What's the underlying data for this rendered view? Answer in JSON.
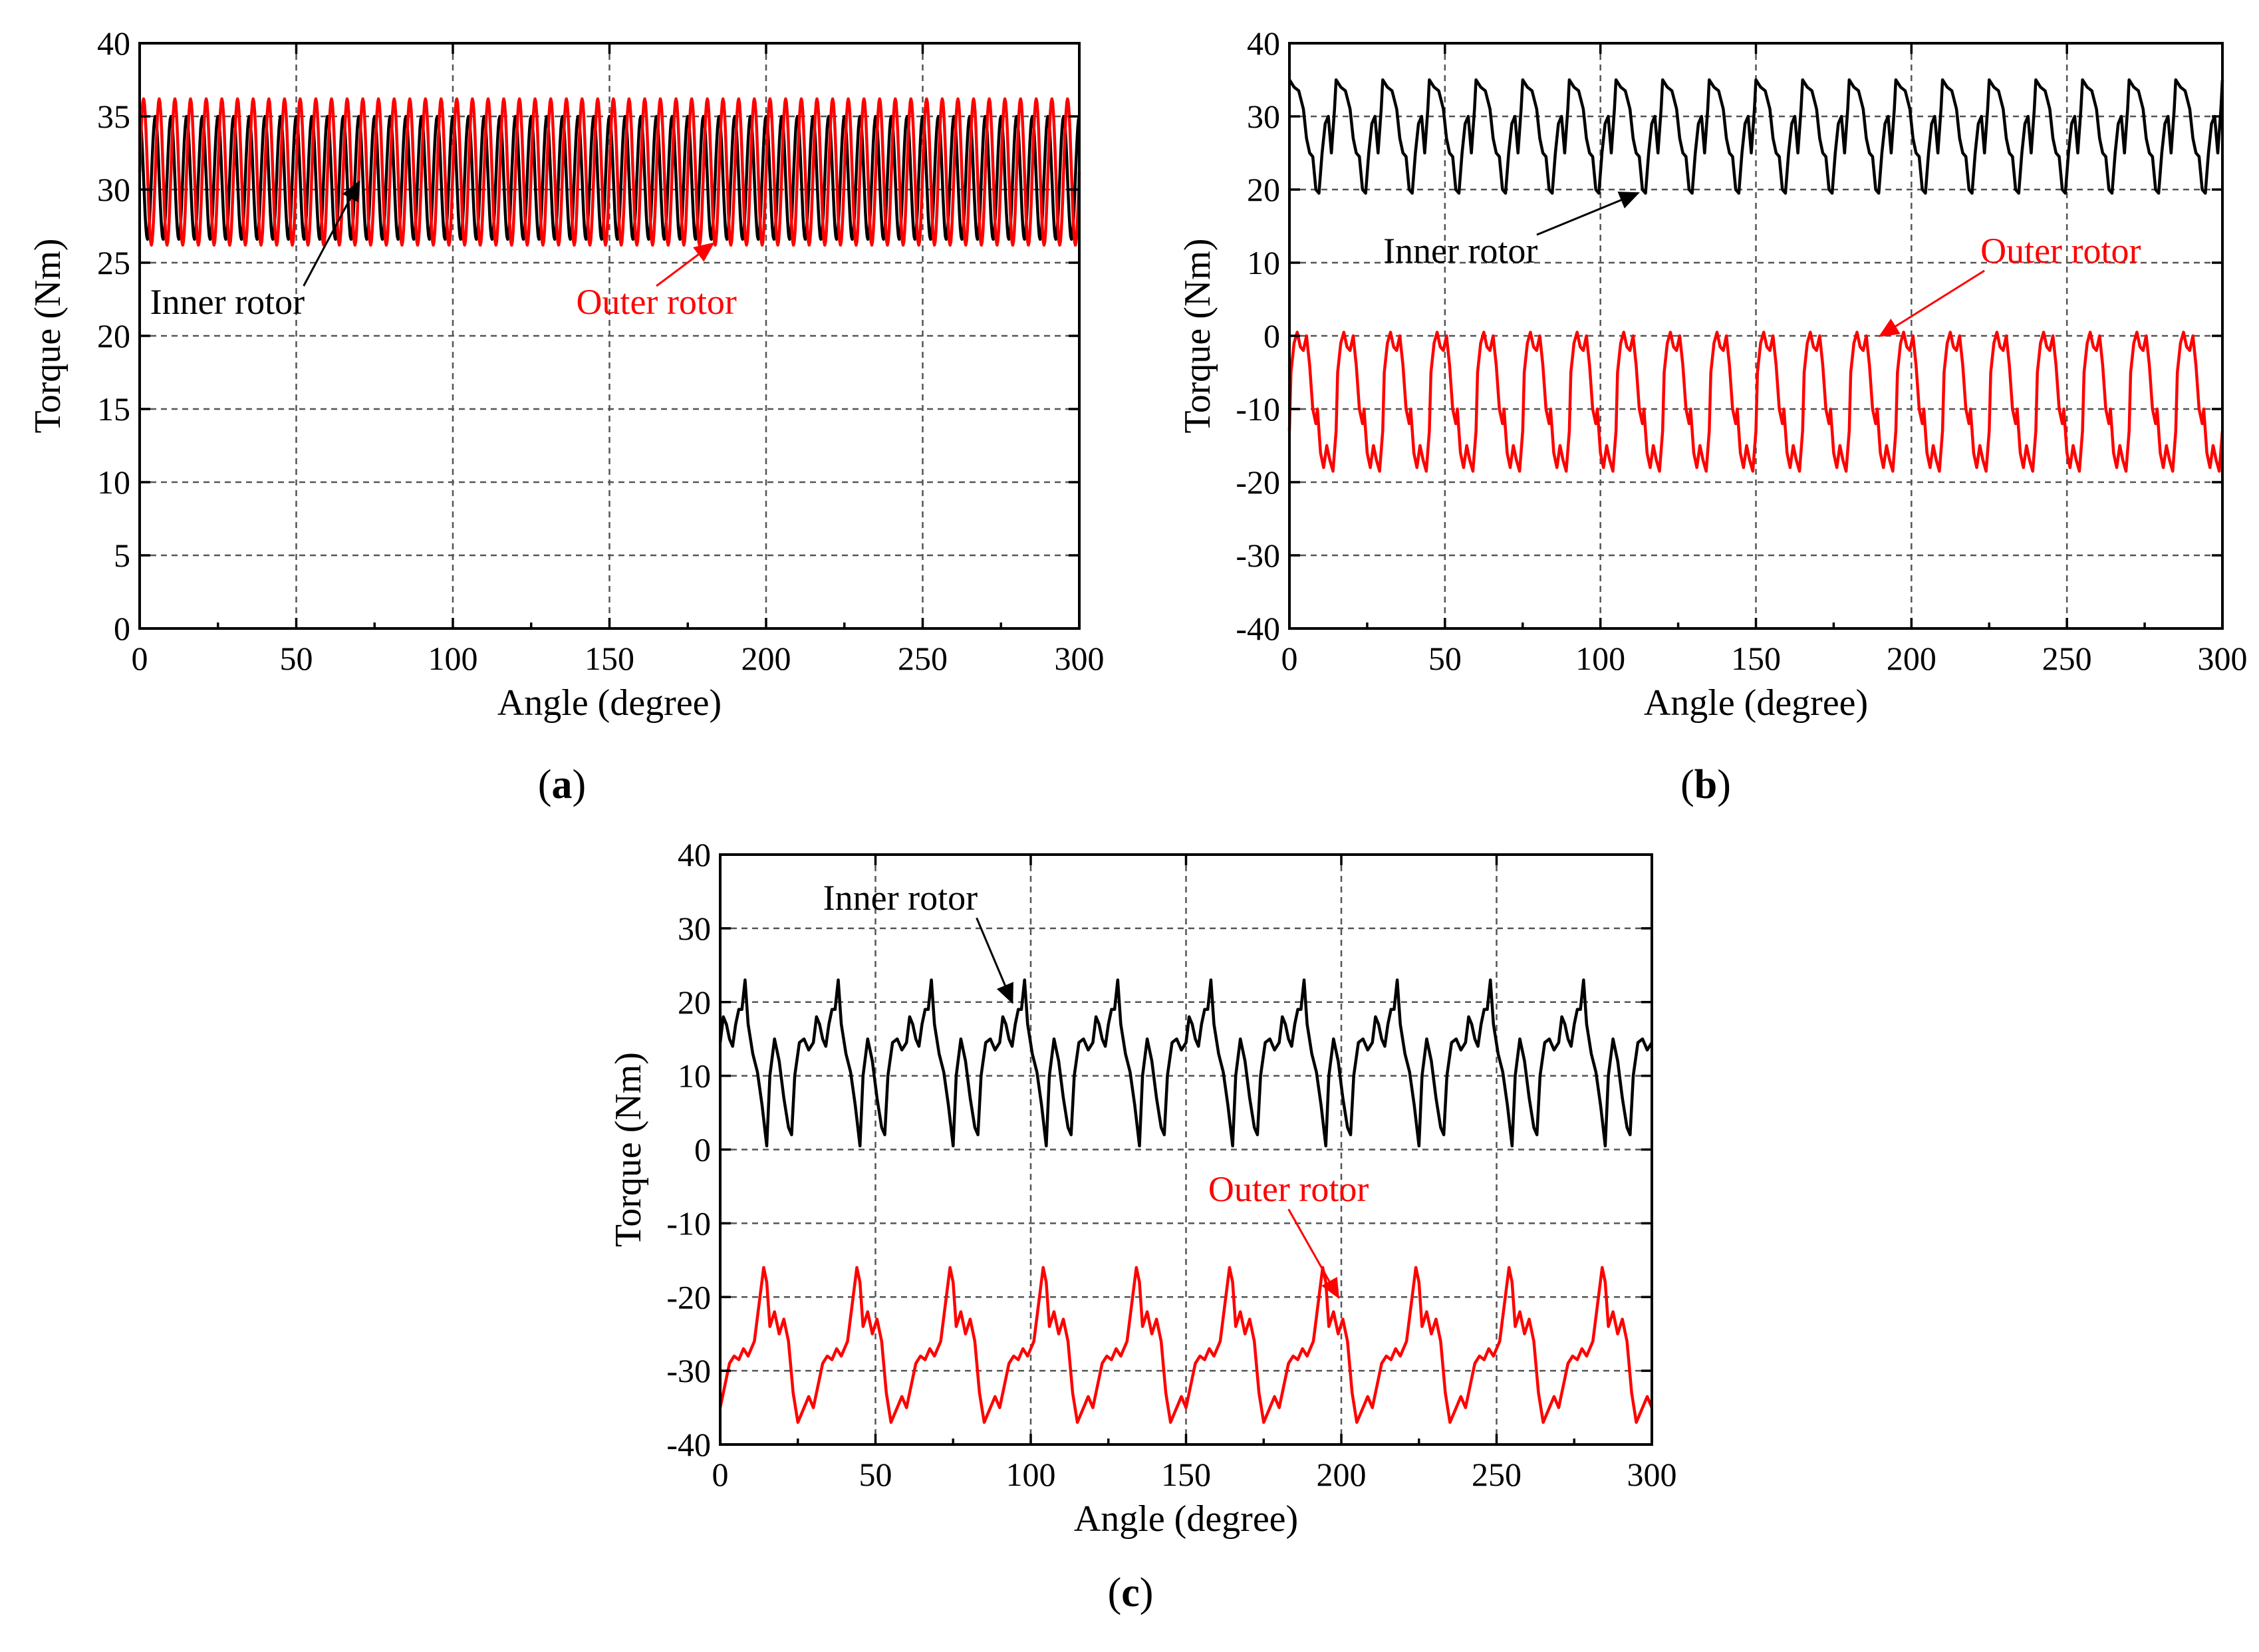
{
  "colors": {
    "inner": "#000000",
    "outer": "#ff0000",
    "grid": "#555555"
  },
  "chart_data": [
    {
      "type": "line",
      "panel_label": "a",
      "xlabel": "Angle (degree)",
      "ylabel": "Torque (Nm)",
      "xlim": [
        0,
        300
      ],
      "ylim": [
        0,
        40
      ],
      "xticks": [
        0,
        50,
        100,
        150,
        200,
        250,
        300
      ],
      "yticks": [
        0,
        5,
        10,
        15,
        20,
        25,
        30,
        35,
        40
      ],
      "grid": true,
      "series": [
        {
          "name": "Inner rotor",
          "color": "#000000",
          "mean": 30.8,
          "amplitude": 4.2,
          "period_deg": 5,
          "waveform": "sine",
          "phase": 0.5
        },
        {
          "name": "Outer rotor",
          "color": "#ff0000",
          "mean": 31.2,
          "amplitude": 5.0,
          "period_deg": 5,
          "waveform": "sine",
          "phase": 0
        }
      ],
      "annotations": [
        {
          "text": "Inner rotor",
          "color": "#000000",
          "text_at": [
            28,
            21.5
          ],
          "arrow_to": [
            70,
            30.5
          ]
        },
        {
          "text": "Outer rotor",
          "color": "#ff0000",
          "text_at": [
            165,
            21.5
          ],
          "arrow_to": [
            183,
            26.3
          ]
        }
      ]
    },
    {
      "type": "line",
      "panel_label": "b",
      "xlabel": "Angle (degree)",
      "ylabel": "Torque (Nm)",
      "xlim": [
        0,
        300
      ],
      "ylim": [
        -40,
        40
      ],
      "xticks": [
        0,
        50,
        100,
        150,
        200,
        250,
        300
      ],
      "yticks": [
        -40,
        -30,
        -20,
        -10,
        0,
        10,
        20,
        30,
        40
      ],
      "grid": true,
      "series": [
        {
          "name": "Inner rotor",
          "color": "#000000",
          "period_deg": 15,
          "phase_deg": 0,
          "cycle": [
            [
              0,
              35
            ],
            [
              1.5,
              34
            ],
            [
              3,
              33.5
            ],
            [
              4.5,
              31
            ],
            [
              5.5,
              27
            ],
            [
              6.5,
              25
            ],
            [
              7.5,
              24.5
            ],
            [
              8.5,
              20
            ],
            [
              9.5,
              19.5
            ],
            [
              10.5,
              25
            ],
            [
              11.5,
              29
            ],
            [
              12.5,
              30
            ],
            [
              13.5,
              25
            ],
            [
              14.5,
              31
            ],
            [
              15,
              35
            ]
          ]
        },
        {
          "name": "Outer rotor",
          "color": "#ff0000",
          "period_deg": 15,
          "phase_deg": 0,
          "cycle": [
            [
              0,
              -13
            ],
            [
              0.5,
              -5
            ],
            [
              1.5,
              -1
            ],
            [
              2.5,
              0.5
            ],
            [
              3.5,
              -1.5
            ],
            [
              4.5,
              -2
            ],
            [
              5.5,
              0
            ],
            [
              6.5,
              -4
            ],
            [
              7.5,
              -10
            ],
            [
              8.5,
              -12
            ],
            [
              9,
              -10
            ],
            [
              10,
              -16
            ],
            [
              11,
              -18
            ],
            [
              12,
              -15
            ],
            [
              13,
              -17
            ],
            [
              14,
              -18.5
            ],
            [
              15,
              -13
            ]
          ]
        }
      ],
      "annotations": [
        {
          "text": "Inner rotor",
          "color": "#000000",
          "text_at": [
            55,
            10
          ],
          "arrow_to": [
            112,
            19.5
          ]
        },
        {
          "text": "Outer rotor",
          "color": "#ff0000",
          "text_at": [
            248,
            10
          ],
          "arrow_to": [
            190,
            0
          ]
        }
      ]
    },
    {
      "type": "line",
      "panel_label": "c",
      "xlabel": "Angle (degree)",
      "ylabel": "Torque (Nm)",
      "xlim": [
        0,
        300
      ],
      "ylim": [
        -40,
        40
      ],
      "xticks": [
        0,
        50,
        100,
        150,
        200,
        250,
        300
      ],
      "yticks": [
        -40,
        -30,
        -20,
        -10,
        0,
        10,
        20,
        30,
        40
      ],
      "grid": true,
      "series": [
        {
          "name": "Inner rotor",
          "color": "#000000",
          "period_deg": 30,
          "phase_deg": 0,
          "cycle": [
            [
              0,
              14.5
            ],
            [
              1,
              18
            ],
            [
              2,
              17
            ],
            [
              3,
              15
            ],
            [
              4,
              14
            ],
            [
              5,
              17
            ],
            [
              6,
              19
            ],
            [
              7,
              19
            ],
            [
              8,
              23
            ],
            [
              9,
              17
            ],
            [
              10.5,
              13
            ],
            [
              12,
              10.5
            ],
            [
              13.5,
              6
            ],
            [
              15,
              0.5
            ],
            [
              16,
              10
            ],
            [
              17.5,
              15
            ],
            [
              19,
              12
            ],
            [
              20.5,
              7
            ],
            [
              22,
              3
            ],
            [
              23,
              2
            ],
            [
              24,
              10
            ],
            [
              25.5,
              14.5
            ],
            [
              27,
              15
            ],
            [
              28.5,
              13.5
            ],
            [
              30,
              14.5
            ]
          ]
        },
        {
          "name": "Outer rotor",
          "color": "#ff0000",
          "period_deg": 30,
          "phase_deg": 0,
          "cycle": [
            [
              0,
              -35
            ],
            [
              1.5,
              -32
            ],
            [
              3,
              -29
            ],
            [
              4.5,
              -28
            ],
            [
              6,
              -28.5
            ],
            [
              7.5,
              -27
            ],
            [
              9,
              -28
            ],
            [
              11,
              -26
            ],
            [
              12.5,
              -21
            ],
            [
              14,
              -16
            ],
            [
              15,
              -18
            ],
            [
              16,
              -24
            ],
            [
              17.5,
              -22
            ],
            [
              19,
              -25
            ],
            [
              20.5,
              -23
            ],
            [
              22,
              -26
            ],
            [
              23.5,
              -33
            ],
            [
              25,
              -37
            ],
            [
              27,
              -35
            ],
            [
              28.5,
              -33.5
            ],
            [
              30,
              -35
            ]
          ]
        }
      ],
      "annotations": [
        {
          "text": "Inner rotor",
          "color": "#000000",
          "text_at": [
            58,
            32.5
          ],
          "arrow_to": [
            94,
            20
          ]
        },
        {
          "text": "Outer rotor",
          "color": "#ff0000",
          "text_at": [
            183,
            -7
          ],
          "arrow_to": [
            199,
            -20
          ]
        }
      ]
    }
  ]
}
